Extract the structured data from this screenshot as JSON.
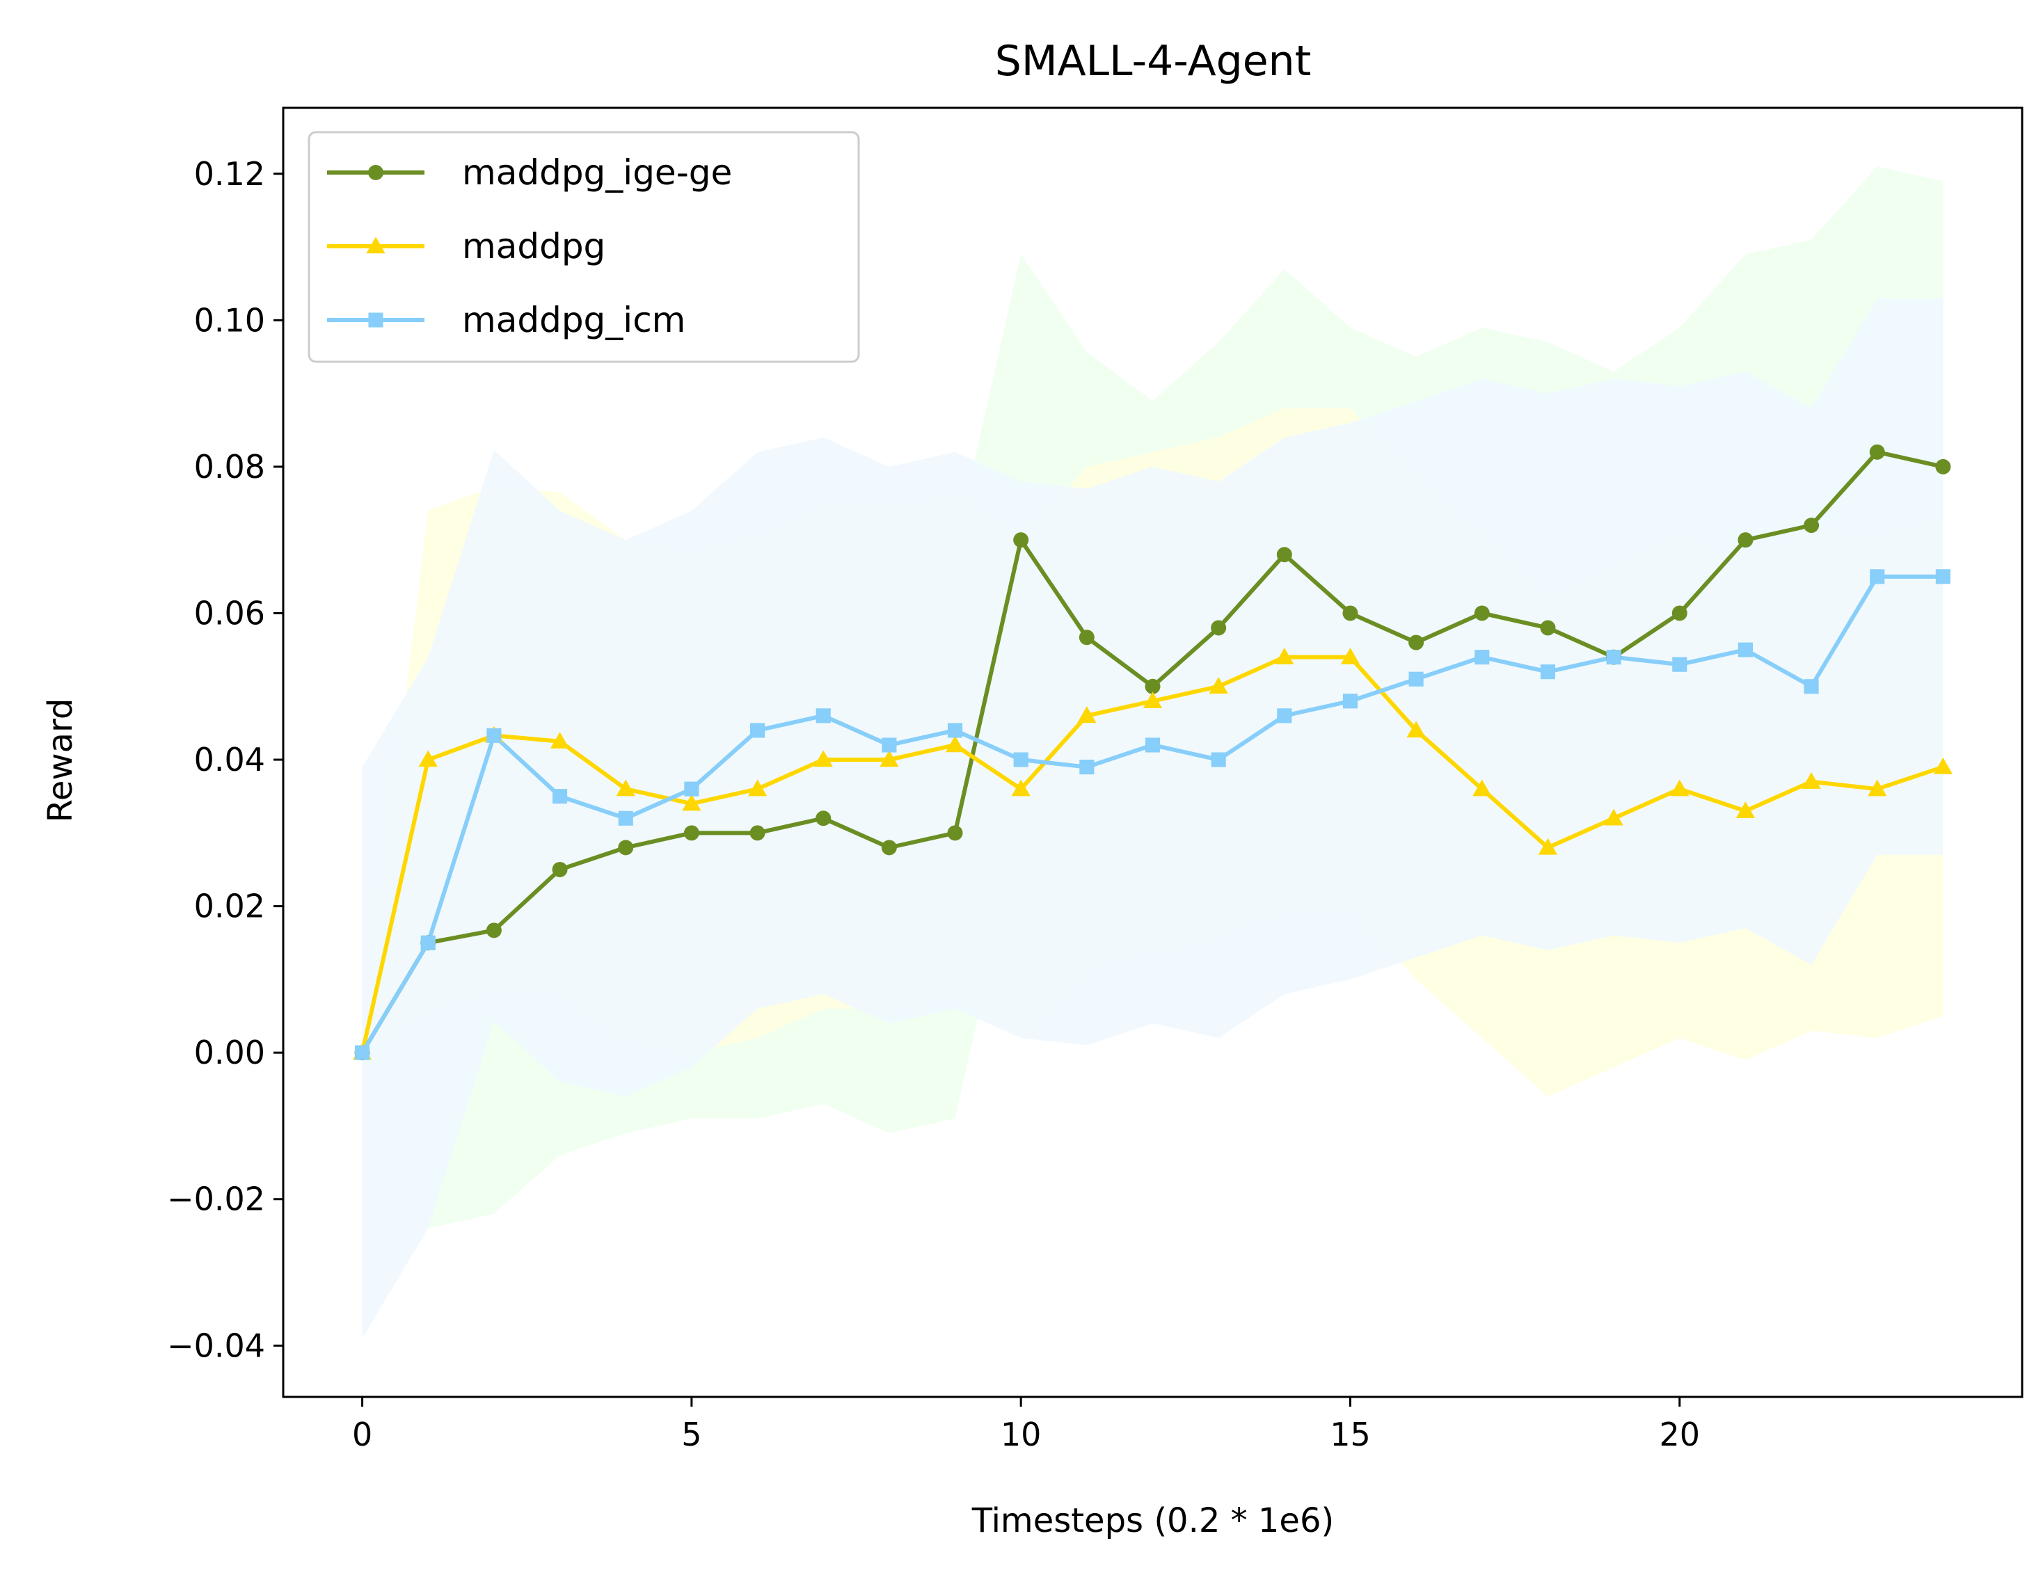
{
  "chart_data": {
    "type": "line",
    "title": "SMALL-4-Agent",
    "xlabel": "Timesteps (0.2 * 1e6)",
    "ylabel": "Reward",
    "xlim": [
      -1.2,
      25.2
    ],
    "ylim": [
      -0.047,
      0.129
    ],
    "xticks": [
      0,
      5,
      10,
      15,
      20
    ],
    "xtick_labels": [
      "0",
      "5",
      "10",
      "15",
      "20"
    ],
    "yticks": [
      -0.04,
      -0.02,
      0.0,
      0.02,
      0.04,
      0.06,
      0.08,
      0.1,
      0.12
    ],
    "ytick_labels": [
      "−0.04",
      "−0.02",
      "0.00",
      "0.02",
      "0.04",
      "0.06",
      "0.08",
      "0.10",
      "0.12"
    ],
    "legend_position": "upper-left",
    "grid": false,
    "x": [
      0,
      1,
      2,
      3,
      4,
      5,
      6,
      7,
      8,
      9,
      10,
      11,
      12,
      13,
      14,
      15,
      16,
      17,
      18,
      19,
      20,
      21,
      22,
      23,
      24
    ],
    "series": [
      {
        "name": "maddpg_ige-ge",
        "color": "#6b8e23",
        "band_color": "#f0fff0",
        "marker": "circle",
        "values": [
          0.0,
          0.015,
          0.0167,
          0.025,
          0.028,
          0.03,
          0.03,
          0.032,
          0.028,
          0.03,
          0.07,
          0.0567,
          0.05,
          0.058,
          0.068,
          0.06,
          0.056,
          0.06,
          0.058,
          0.054,
          0.06,
          0.07,
          0.072,
          0.082,
          0.08
        ],
        "lower": [
          0.0,
          -0.024,
          -0.022,
          -0.014,
          -0.011,
          -0.009,
          -0.009,
          -0.007,
          -0.011,
          -0.009,
          0.031,
          0.017,
          0.011,
          0.019,
          0.029,
          0.021,
          0.017,
          0.021,
          0.019,
          0.015,
          0.021,
          0.031,
          0.033,
          0.043,
          0.041
        ],
        "upper": [
          0.0,
          0.054,
          0.0557,
          0.064,
          0.067,
          0.069,
          0.069,
          0.071,
          0.067,
          0.069,
          0.109,
          0.0957,
          0.089,
          0.097,
          0.107,
          0.099,
          0.095,
          0.099,
          0.097,
          0.093,
          0.099,
          0.109,
          0.111,
          0.121,
          0.119
        ]
      },
      {
        "name": "maddpg",
        "color": "#ffd700",
        "band_color": "#ffffe0",
        "marker": "triangle",
        "values": [
          0.0,
          0.04,
          0.0433,
          0.0425,
          0.036,
          0.034,
          0.036,
          0.04,
          0.04,
          0.042,
          0.036,
          0.046,
          0.048,
          0.05,
          0.054,
          0.054,
          0.044,
          0.036,
          0.028,
          0.032,
          0.036,
          0.033,
          0.037,
          0.036,
          0.039
        ],
        "lower": [
          0.0,
          0.006,
          0.0093,
          0.0085,
          0.002,
          0.0,
          0.002,
          0.006,
          0.006,
          0.008,
          0.002,
          0.012,
          0.014,
          0.016,
          0.02,
          0.02,
          0.01,
          0.002,
          -0.006,
          -0.002,
          0.002,
          -0.001,
          0.003,
          0.002,
          0.005
        ],
        "upper": [
          0.0,
          0.074,
          0.0773,
          0.0765,
          0.07,
          0.068,
          0.07,
          0.074,
          0.074,
          0.076,
          0.07,
          0.08,
          0.082,
          0.084,
          0.088,
          0.088,
          0.078,
          0.07,
          0.062,
          0.066,
          0.07,
          0.067,
          0.071,
          0.07,
          0.073
        ]
      },
      {
        "name": "maddpg_icm",
        "color": "#87cefa",
        "band_color": "#f0f8ff",
        "marker": "square",
        "values": [
          0.0,
          0.015,
          0.0433,
          0.035,
          0.032,
          0.036,
          0.044,
          0.046,
          0.042,
          0.044,
          0.04,
          0.039,
          0.042,
          0.04,
          0.046,
          0.048,
          0.051,
          0.054,
          0.052,
          0.054,
          0.053,
          0.055,
          0.05,
          0.065,
          0.065
        ],
        "lower": [
          -0.039,
          -0.024,
          0.0043,
          -0.004,
          -0.006,
          -0.002,
          0.006,
          0.008,
          0.004,
          0.006,
          0.002,
          0.001,
          0.004,
          0.002,
          0.008,
          0.01,
          0.013,
          0.016,
          0.014,
          0.016,
          0.015,
          0.017,
          0.012,
          0.027,
          0.027
        ],
        "upper": [
          0.039,
          0.054,
          0.0823,
          0.074,
          0.07,
          0.074,
          0.082,
          0.084,
          0.08,
          0.082,
          0.078,
          0.077,
          0.08,
          0.078,
          0.084,
          0.086,
          0.089,
          0.092,
          0.09,
          0.092,
          0.091,
          0.093,
          0.088,
          0.103,
          0.103
        ]
      }
    ]
  }
}
